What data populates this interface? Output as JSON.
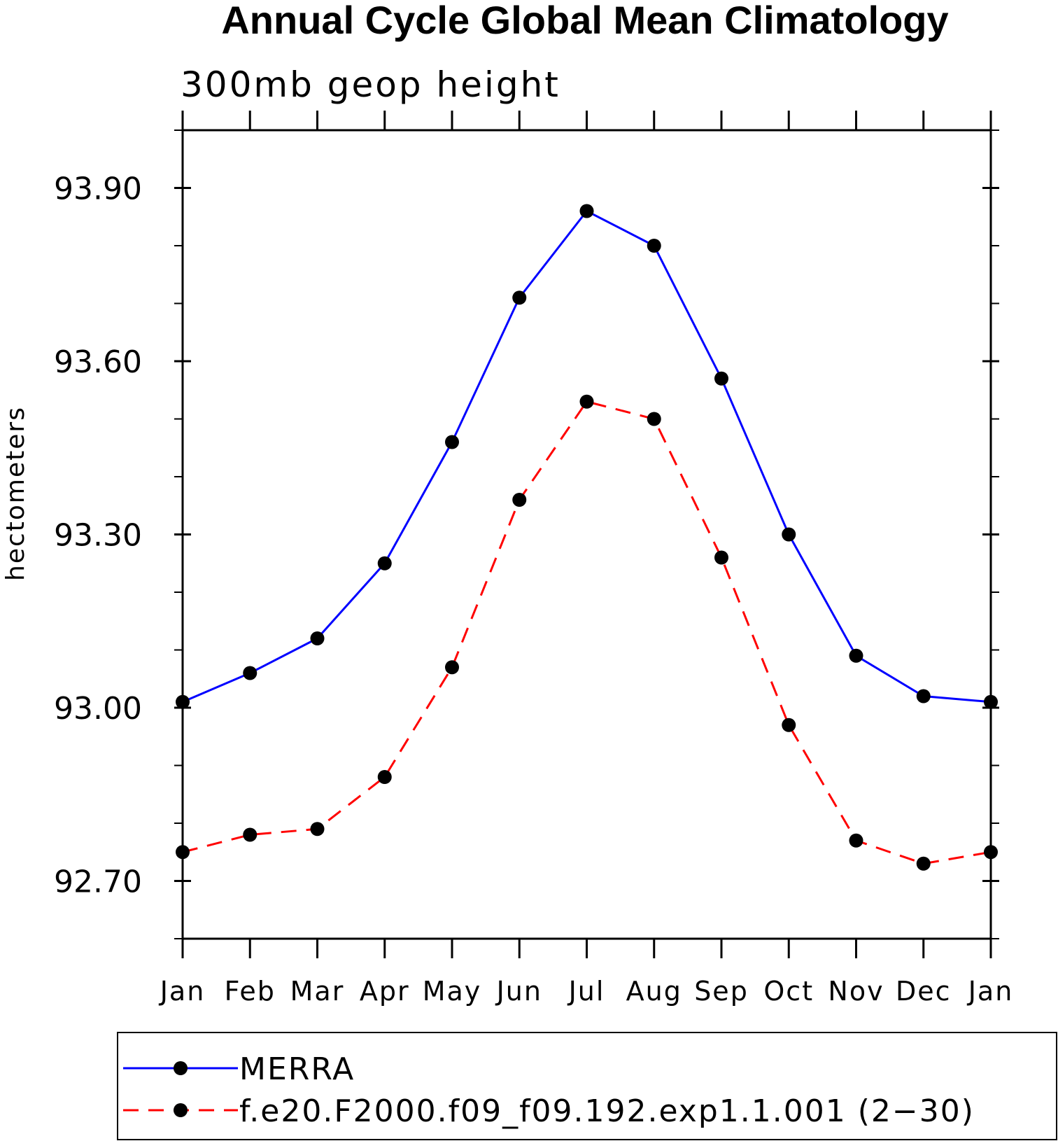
{
  "chart_data": {
    "type": "line",
    "title": "Annual Cycle Global Mean Climatology",
    "subtitle": "300mb geop height",
    "ylabel": "hectometers",
    "xlabel": "",
    "categories": [
      "Jan",
      "Feb",
      "Mar",
      "Apr",
      "May",
      "Jun",
      "Jul",
      "Aug",
      "Sep",
      "Oct",
      "Nov",
      "Dec",
      "Jan"
    ],
    "ylim": [
      92.6,
      94.0
    ],
    "yticks_major": [
      "92.70",
      "93.00",
      "93.30",
      "93.60",
      "93.90"
    ],
    "grid": false,
    "legend_position": "bottom",
    "series": [
      {
        "name": "MERRA",
        "color": "#0000ff",
        "line_style": "solid",
        "marker": "filled-circle",
        "values": [
          93.01,
          93.06,
          93.12,
          93.25,
          93.46,
          93.71,
          93.86,
          93.8,
          93.57,
          93.3,
          93.09,
          93.02,
          93.01
        ]
      },
      {
        "name": "f.e20.F2000.f09_f09.192.exp1.1.001 (2−30)",
        "color": "#ff0000",
        "line_style": "dashed",
        "marker": "filled-circle",
        "values": [
          92.75,
          92.78,
          92.79,
          92.88,
          93.07,
          93.36,
          93.53,
          93.5,
          93.26,
          92.97,
          92.77,
          92.73,
          92.75
        ]
      }
    ]
  }
}
